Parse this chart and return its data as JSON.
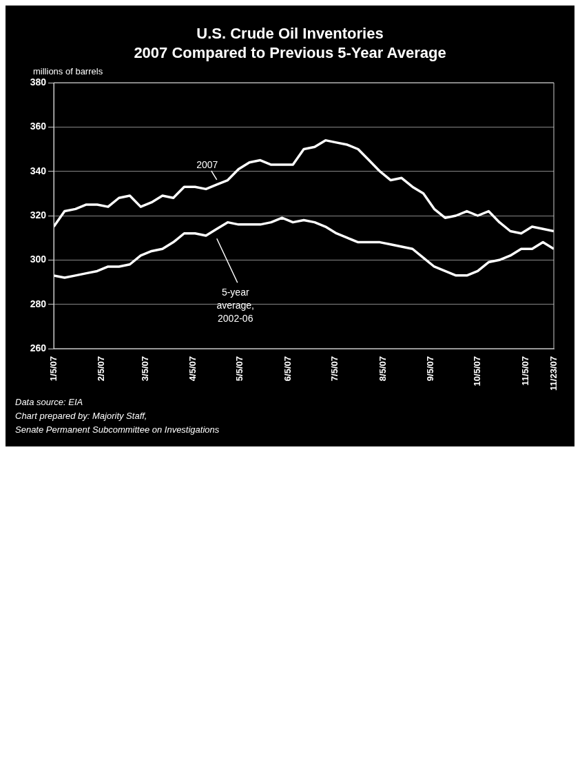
{
  "chart_data": {
    "type": "line",
    "title": "U.S. Crude Oil Inventories",
    "subtitle": "2007 Compared to Previous 5-Year Average",
    "ylabel": "millions of barrels",
    "x": [
      "2007-01-05",
      "2007-01-12",
      "2007-01-19",
      "2007-01-26",
      "2007-02-02",
      "2007-02-09",
      "2007-02-16",
      "2007-02-23",
      "2007-03-02",
      "2007-03-09",
      "2007-03-16",
      "2007-03-23",
      "2007-03-30",
      "2007-04-06",
      "2007-04-13",
      "2007-04-20",
      "2007-04-27",
      "2007-05-04",
      "2007-05-11",
      "2007-05-18",
      "2007-05-25",
      "2007-06-01",
      "2007-06-08",
      "2007-06-15",
      "2007-06-22",
      "2007-06-29",
      "2007-07-06",
      "2007-07-13",
      "2007-07-20",
      "2007-07-27",
      "2007-08-03",
      "2007-08-10",
      "2007-08-17",
      "2007-08-24",
      "2007-08-31",
      "2007-09-07",
      "2007-09-14",
      "2007-09-21",
      "2007-09-28",
      "2007-10-05",
      "2007-10-12",
      "2007-10-19",
      "2007-10-26",
      "2007-11-02",
      "2007-11-09",
      "2007-11-16",
      "2007-11-23"
    ],
    "series": [
      {
        "name": "2007",
        "color": "#ffffff",
        "values": [
          315,
          322,
          323,
          325,
          325,
          324,
          328,
          329,
          324,
          326,
          329,
          328,
          333,
          333,
          332,
          334,
          336,
          341,
          344,
          345,
          343,
          343,
          343,
          350,
          351,
          354,
          353,
          352,
          350,
          345,
          340,
          336,
          337,
          333,
          330,
          323,
          319,
          320,
          322,
          320,
          322,
          317,
          313,
          312,
          315,
          314,
          313
        ]
      },
      {
        "name": "5-year average, 2002-06",
        "color": "#ffffff",
        "values": [
          293,
          292,
          293,
          294,
          295,
          297,
          297,
          298,
          302,
          304,
          305,
          308,
          312,
          312,
          311,
          314,
          317,
          316,
          316,
          316,
          317,
          319,
          317,
          318,
          317,
          315,
          312,
          310,
          308,
          308,
          308,
          307,
          306,
          305,
          301,
          297,
          295,
          293,
          293,
          295,
          299,
          300,
          302,
          305,
          305,
          308,
          305
        ]
      }
    ],
    "xlim": [
      "2007-01-05",
      "2007-11-23"
    ],
    "xticks": [
      {
        "value": "2007-01-05",
        "label": "1/5/07"
      },
      {
        "value": "2007-02-05",
        "label": "2/5/07"
      },
      {
        "value": "2007-03-05",
        "label": "3/5/07"
      },
      {
        "value": "2007-04-05",
        "label": "4/5/07"
      },
      {
        "value": "2007-05-05",
        "label": "5/5/07"
      },
      {
        "value": "2007-06-05",
        "label": "6/5/07"
      },
      {
        "value": "2007-07-05",
        "label": "7/5/07"
      },
      {
        "value": "2007-08-05",
        "label": "8/5/07"
      },
      {
        "value": "2007-09-05",
        "label": "9/5/07"
      },
      {
        "value": "2007-10-05",
        "label": "10/5/07"
      },
      {
        "value": "2007-11-05",
        "label": "11/5/07"
      },
      {
        "value": "2007-11-23",
        "label": "11/23/07"
      }
    ],
    "ylim": [
      260,
      380
    ],
    "yticks": [
      260,
      280,
      300,
      320,
      340,
      360,
      380
    ],
    "grid": "y",
    "legend": false,
    "marker": "none",
    "line_style": "solid",
    "annotations": [
      "Data source: EIA",
      "Chart prepared by: Majority Staff,",
      "Senate Permanent Subcommittee on Investigations"
    ]
  }
}
